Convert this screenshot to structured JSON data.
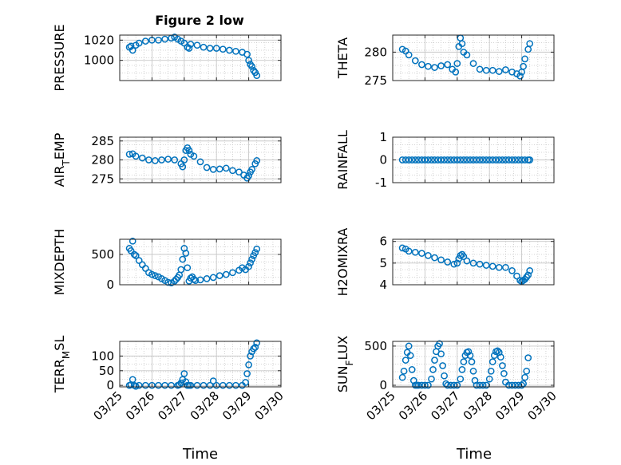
{
  "figure_title": "Figure 2 low",
  "x_axis_label": "Time",
  "x_tick_labels": [
    "03/25",
    "03/26",
    "03/27",
    "03/28",
    "03/29",
    "03/30"
  ],
  "colors": {
    "marker": "#0072BD",
    "axes": "#262626",
    "grid": "#C8C8C8"
  },
  "chart_data": [
    {
      "type": "scatter",
      "marker": "circle-open",
      "ylabel": "PRESSURE",
      "ylim": [
        980,
        1025
      ],
      "yticks": [
        1000,
        1020
      ],
      "xlim": [
        "03/25",
        "03/30"
      ],
      "grid": true,
      "series": [
        {
          "x": [
            25.3,
            25.35,
            25.4,
            25.5,
            25.6,
            25.8,
            26.0,
            26.2,
            26.4,
            26.6,
            26.7,
            26.8,
            26.9,
            27.0,
            27.1,
            27.15,
            27.2,
            27.4,
            27.6,
            27.8,
            28.0,
            28.2,
            28.4,
            28.6,
            28.8,
            28.95,
            29.0,
            29.05,
            29.1,
            29.15,
            29.2,
            29.25
          ],
          "y": [
            1013,
            1014,
            1010,
            1015,
            1017,
            1019,
            1020,
            1020,
            1021,
            1022,
            1023,
            1021,
            1019,
            1017,
            1013,
            1012,
            1016,
            1015,
            1013,
            1012,
            1012,
            1011,
            1010,
            1009,
            1008,
            1006,
            1000,
            996,
            994,
            990,
            988,
            985
          ]
        }
      ]
    },
    {
      "type": "scatter",
      "marker": "circle-open",
      "ylabel": "THETA",
      "ylim": [
        275,
        283
      ],
      "yticks": [
        275,
        280
      ],
      "xlim": [
        "03/25",
        "03/30"
      ],
      "grid": true,
      "series": [
        {
          "x": [
            25.3,
            25.4,
            25.5,
            25.7,
            25.9,
            26.1,
            26.3,
            26.5,
            26.7,
            26.85,
            26.95,
            27.0,
            27.05,
            27.1,
            27.15,
            27.2,
            27.3,
            27.5,
            27.7,
            27.9,
            28.1,
            28.3,
            28.5,
            28.7,
            28.85,
            28.95,
            29.0,
            29.05,
            29.1,
            29.2,
            29.25
          ],
          "y": [
            280.5,
            280.2,
            279.5,
            278.5,
            277.8,
            277.5,
            277.3,
            277.6,
            277.8,
            277.0,
            276.5,
            278.0,
            281.0,
            282.5,
            281.5,
            280.0,
            279.5,
            278.0,
            277.0,
            276.8,
            276.8,
            276.6,
            276.9,
            276.5,
            276.2,
            275.8,
            276.5,
            277.5,
            278.8,
            280.5,
            281.5
          ]
        }
      ]
    },
    {
      "type": "scatter",
      "marker": "circle-open",
      "ylabel": "AIR_TEMP",
      "ylim": [
        274,
        286
      ],
      "yticks": [
        275,
        280,
        285
      ],
      "xlim": [
        "03/25",
        "03/30"
      ],
      "grid": true,
      "series": [
        {
          "x": [
            25.3,
            25.4,
            25.5,
            25.7,
            25.9,
            26.1,
            26.3,
            26.5,
            26.7,
            26.9,
            26.95,
            27.0,
            27.05,
            27.1,
            27.15,
            27.2,
            27.3,
            27.5,
            27.7,
            27.9,
            28.1,
            28.3,
            28.5,
            28.7,
            28.85,
            28.95,
            29.0,
            29.05,
            29.1,
            29.2,
            29.25
          ],
          "y": [
            281.5,
            281.6,
            281.0,
            280.5,
            280.0,
            279.8,
            280.0,
            280.2,
            280.0,
            279.0,
            278.2,
            280.0,
            282.5,
            283.2,
            282.5,
            281.5,
            281.0,
            279.5,
            278.0,
            277.5,
            277.6,
            277.8,
            277.2,
            276.8,
            276.0,
            275.2,
            275.8,
            276.8,
            277.5,
            279.0,
            279.8
          ]
        }
      ]
    },
    {
      "type": "scatter",
      "marker": "circle-open",
      "ylabel": "RAINFALL",
      "ylim": [
        -1,
        1
      ],
      "yticks": [
        -1,
        0,
        1
      ],
      "xlim": [
        "03/25",
        "03/30"
      ],
      "grid": true,
      "series": [
        {
          "x": [
            25.3,
            25.4,
            25.5,
            25.6,
            25.7,
            25.8,
            25.9,
            26.0,
            26.1,
            26.2,
            26.3,
            26.4,
            26.5,
            26.6,
            26.7,
            26.8,
            26.9,
            27.0,
            27.1,
            27.2,
            27.3,
            27.4,
            27.5,
            27.6,
            27.7,
            27.8,
            27.9,
            28.0,
            28.1,
            28.2,
            28.3,
            28.4,
            28.5,
            28.6,
            28.7,
            28.8,
            28.9,
            29.0,
            29.1,
            29.2,
            29.25
          ],
          "y": [
            0,
            0,
            0,
            0,
            0,
            0,
            0,
            0,
            0,
            0,
            0,
            0,
            0,
            0,
            0,
            0,
            0,
            0,
            0,
            0,
            0,
            0,
            0,
            0,
            0,
            0,
            0,
            0,
            0,
            0,
            0,
            0,
            0,
            0,
            0,
            0,
            0,
            0,
            0,
            0,
            0
          ]
        }
      ]
    },
    {
      "type": "scatter",
      "marker": "circle-open",
      "ylabel": "MIXDEPTH",
      "ylim": [
        0,
        750
      ],
      "yticks": [
        0,
        500
      ],
      "xlim": [
        "03/25",
        "03/30"
      ],
      "grid": true,
      "series": [
        {
          "x": [
            25.3,
            25.35,
            25.4,
            25.45,
            25.5,
            25.6,
            25.7,
            25.8,
            25.9,
            26.0,
            26.1,
            26.2,
            26.3,
            26.4,
            26.5,
            26.6,
            26.7,
            26.75,
            26.8,
            26.85,
            26.9,
            26.95,
            27.0,
            27.05,
            27.1,
            27.15,
            27.2,
            27.25,
            27.3,
            27.35,
            27.5,
            27.7,
            27.9,
            28.1,
            28.3,
            28.5,
            28.7,
            28.8,
            28.9,
            29.0,
            29.05,
            29.1,
            29.15,
            29.2,
            29.25
          ],
          "y": [
            600,
            560,
            720,
            500,
            480,
            400,
            330,
            270,
            200,
            170,
            150,
            130,
            100,
            70,
            40,
            30,
            60,
            90,
            120,
            160,
            250,
            420,
            600,
            520,
            280,
            60,
            110,
            130,
            90,
            70,
            80,
            100,
            120,
            150,
            170,
            200,
            240,
            280,
            250,
            300,
            360,
            420,
            480,
            530,
            590
          ]
        }
      ]
    },
    {
      "type": "scatter",
      "marker": "circle-open",
      "ylabel": "H2OMIXRA",
      "ylim": [
        4,
        6.1
      ],
      "yticks": [
        4,
        5,
        6
      ],
      "xlim": [
        "03/25",
        "03/30"
      ],
      "grid": true,
      "series": [
        {
          "x": [
            25.3,
            25.4,
            25.5,
            25.7,
            25.9,
            26.1,
            26.3,
            26.5,
            26.7,
            26.9,
            27.0,
            27.05,
            27.1,
            27.15,
            27.2,
            27.3,
            27.5,
            27.7,
            27.9,
            28.1,
            28.3,
            28.5,
            28.7,
            28.85,
            28.95,
            29.0,
            29.05,
            29.1,
            29.15,
            29.2,
            29.25
          ],
          "y": [
            5.7,
            5.65,
            5.55,
            5.5,
            5.45,
            5.35,
            5.25,
            5.15,
            5.05,
            4.95,
            5.0,
            5.2,
            5.35,
            5.4,
            5.3,
            5.1,
            5.0,
            4.95,
            4.9,
            4.85,
            4.8,
            4.8,
            4.65,
            4.4,
            4.2,
            4.15,
            4.2,
            4.25,
            4.35,
            4.45,
            4.65
          ]
        }
      ]
    },
    {
      "type": "scatter",
      "marker": "circle-open",
      "ylabel": "TERR_MSL",
      "ylim": [
        -5,
        150
      ],
      "yticks": [
        0,
        50,
        100
      ],
      "xlim": [
        "03/25",
        "03/30"
      ],
      "grid": true,
      "series": [
        {
          "x": [
            25.3,
            25.35,
            25.4,
            25.45,
            25.5,
            25.6,
            25.8,
            26.0,
            26.2,
            26.4,
            26.6,
            26.8,
            26.85,
            26.9,
            26.95,
            27.0,
            27.05,
            27.1,
            27.15,
            27.2,
            27.4,
            27.6,
            27.8,
            27.9,
            28.0,
            28.2,
            28.4,
            28.6,
            28.8,
            28.9,
            28.95,
            29.0,
            29.05,
            29.1,
            29.15,
            29.2,
            29.25
          ],
          "y": [
            0,
            2,
            20,
            0,
            -3,
            0,
            0,
            0,
            0,
            0,
            0,
            0,
            2,
            8,
            20,
            40,
            12,
            0,
            0,
            0,
            0,
            0,
            0,
            15,
            0,
            0,
            0,
            0,
            0,
            10,
            40,
            70,
            100,
            115,
            125,
            130,
            145
          ]
        }
      ]
    },
    {
      "type": "scatter",
      "marker": "circle-open",
      "ylabel": "SUN_FLUX",
      "ylim": [
        -20,
        560
      ],
      "yticks": [
        0,
        500
      ],
      "xlim": [
        "03/25",
        "03/30"
      ],
      "grid": true,
      "series": [
        {
          "x": [
            25.3,
            25.35,
            25.4,
            25.45,
            25.5,
            25.55,
            25.6,
            25.65,
            25.7,
            25.75,
            25.8,
            25.9,
            26.0,
            26.1,
            26.2,
            26.25,
            26.3,
            26.35,
            26.4,
            26.45,
            26.5,
            26.55,
            26.6,
            26.65,
            26.7,
            26.8,
            26.9,
            27.0,
            27.1,
            27.15,
            27.2,
            27.25,
            27.3,
            27.35,
            27.4,
            27.45,
            27.5,
            27.55,
            27.6,
            27.7,
            27.8,
            27.9,
            28.0,
            28.05,
            28.1,
            28.15,
            28.2,
            28.25,
            28.3,
            28.35,
            28.4,
            28.45,
            28.5,
            28.6,
            28.7,
            28.8,
            28.9,
            29.0,
            29.05,
            29.1,
            29.15,
            29.2
          ],
          "y": [
            100,
            180,
            320,
            420,
            500,
            380,
            200,
            60,
            0,
            0,
            0,
            0,
            0,
            0,
            80,
            200,
            320,
            430,
            500,
            530,
            400,
            250,
            120,
            20,
            0,
            0,
            0,
            0,
            80,
            200,
            300,
            380,
            420,
            430,
            380,
            300,
            180,
            60,
            0,
            0,
            0,
            0,
            80,
            180,
            300,
            380,
            430,
            440,
            420,
            360,
            250,
            150,
            40,
            0,
            0,
            0,
            0,
            0,
            20,
            100,
            180,
            350
          ]
        }
      ]
    }
  ]
}
